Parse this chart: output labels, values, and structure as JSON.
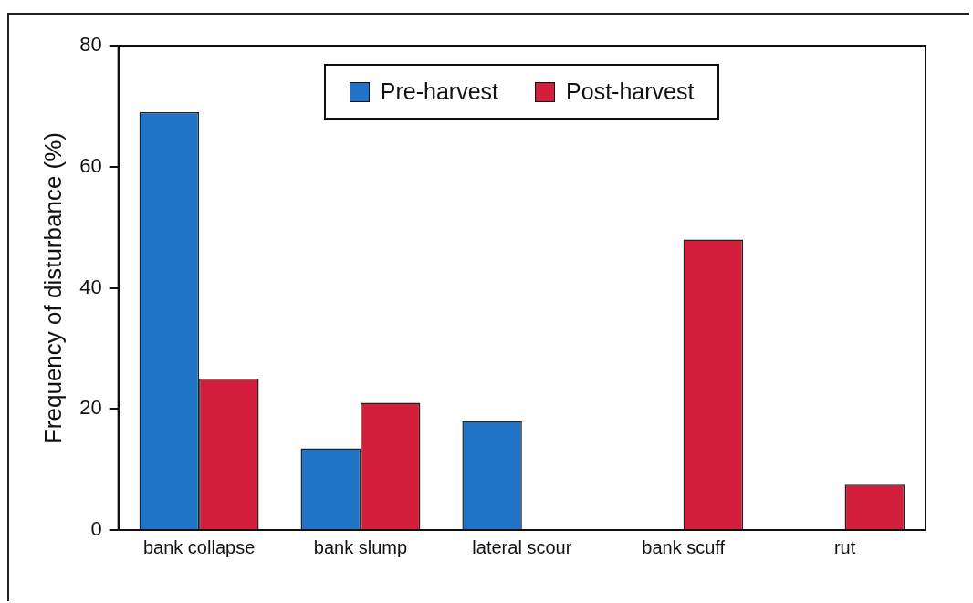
{
  "chart_data": {
    "type": "bar",
    "ylabel": "Frequency of disturbance (%)",
    "categories": [
      "bank collapse",
      "bank slump",
      "lateral scour",
      "bank scuff",
      "rut"
    ],
    "series": [
      {
        "name": "Pre-harvest",
        "color": "#1f74c9",
        "values": [
          69,
          13.5,
          18,
          0,
          0
        ]
      },
      {
        "name": "Post-harvest",
        "color": "#d41f3c",
        "values": [
          25,
          21,
          0,
          48,
          7.5
        ]
      }
    ],
    "ylim": [
      0,
      80
    ],
    "yticks": [
      0,
      20,
      40,
      60,
      80
    ],
    "grid": false,
    "legend": "top"
  }
}
